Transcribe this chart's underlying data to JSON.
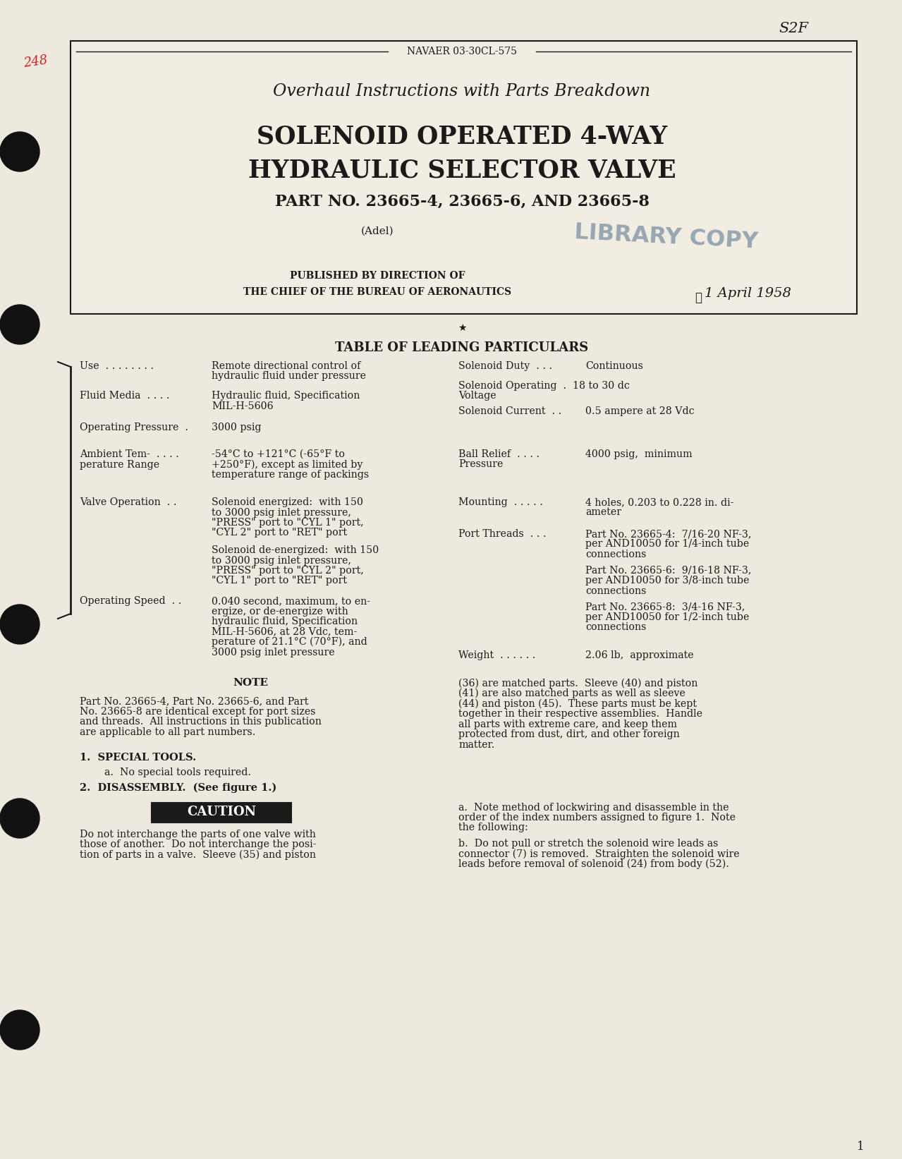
{
  "page_bg": "#eee9de",
  "inner_bg": "#f2ede3",
  "border_color": "#1a1a1a",
  "text_color": "#1a1a1a",
  "header_doc_num": "NAVAER 03-30CL-575",
  "title_italic": "Overhaul Instructions with Parts Breakdown",
  "title_line1": "SOLENOID OPERATED 4-WAY",
  "title_line2": "HYDRAULIC SELECTOR VALVE",
  "title_line3": "PART NO. 23665-4, 23665-6, AND 23665-8",
  "subtitle_adel": "(Adel)",
  "library_copy": "LIBRARY COPY",
  "published_line1": "PUBLISHED BY DIRECTION OF",
  "published_line2": "THE CHIEF OF THE BUREAU OF AERONAUTICS",
  "date_text": "1 April 1958",
  "table_heading": "TABLE OF LEADING PARTICULARS",
  "page_num": "1",
  "handwritten_num": "248",
  "handwritten_s2f": "S2F"
}
